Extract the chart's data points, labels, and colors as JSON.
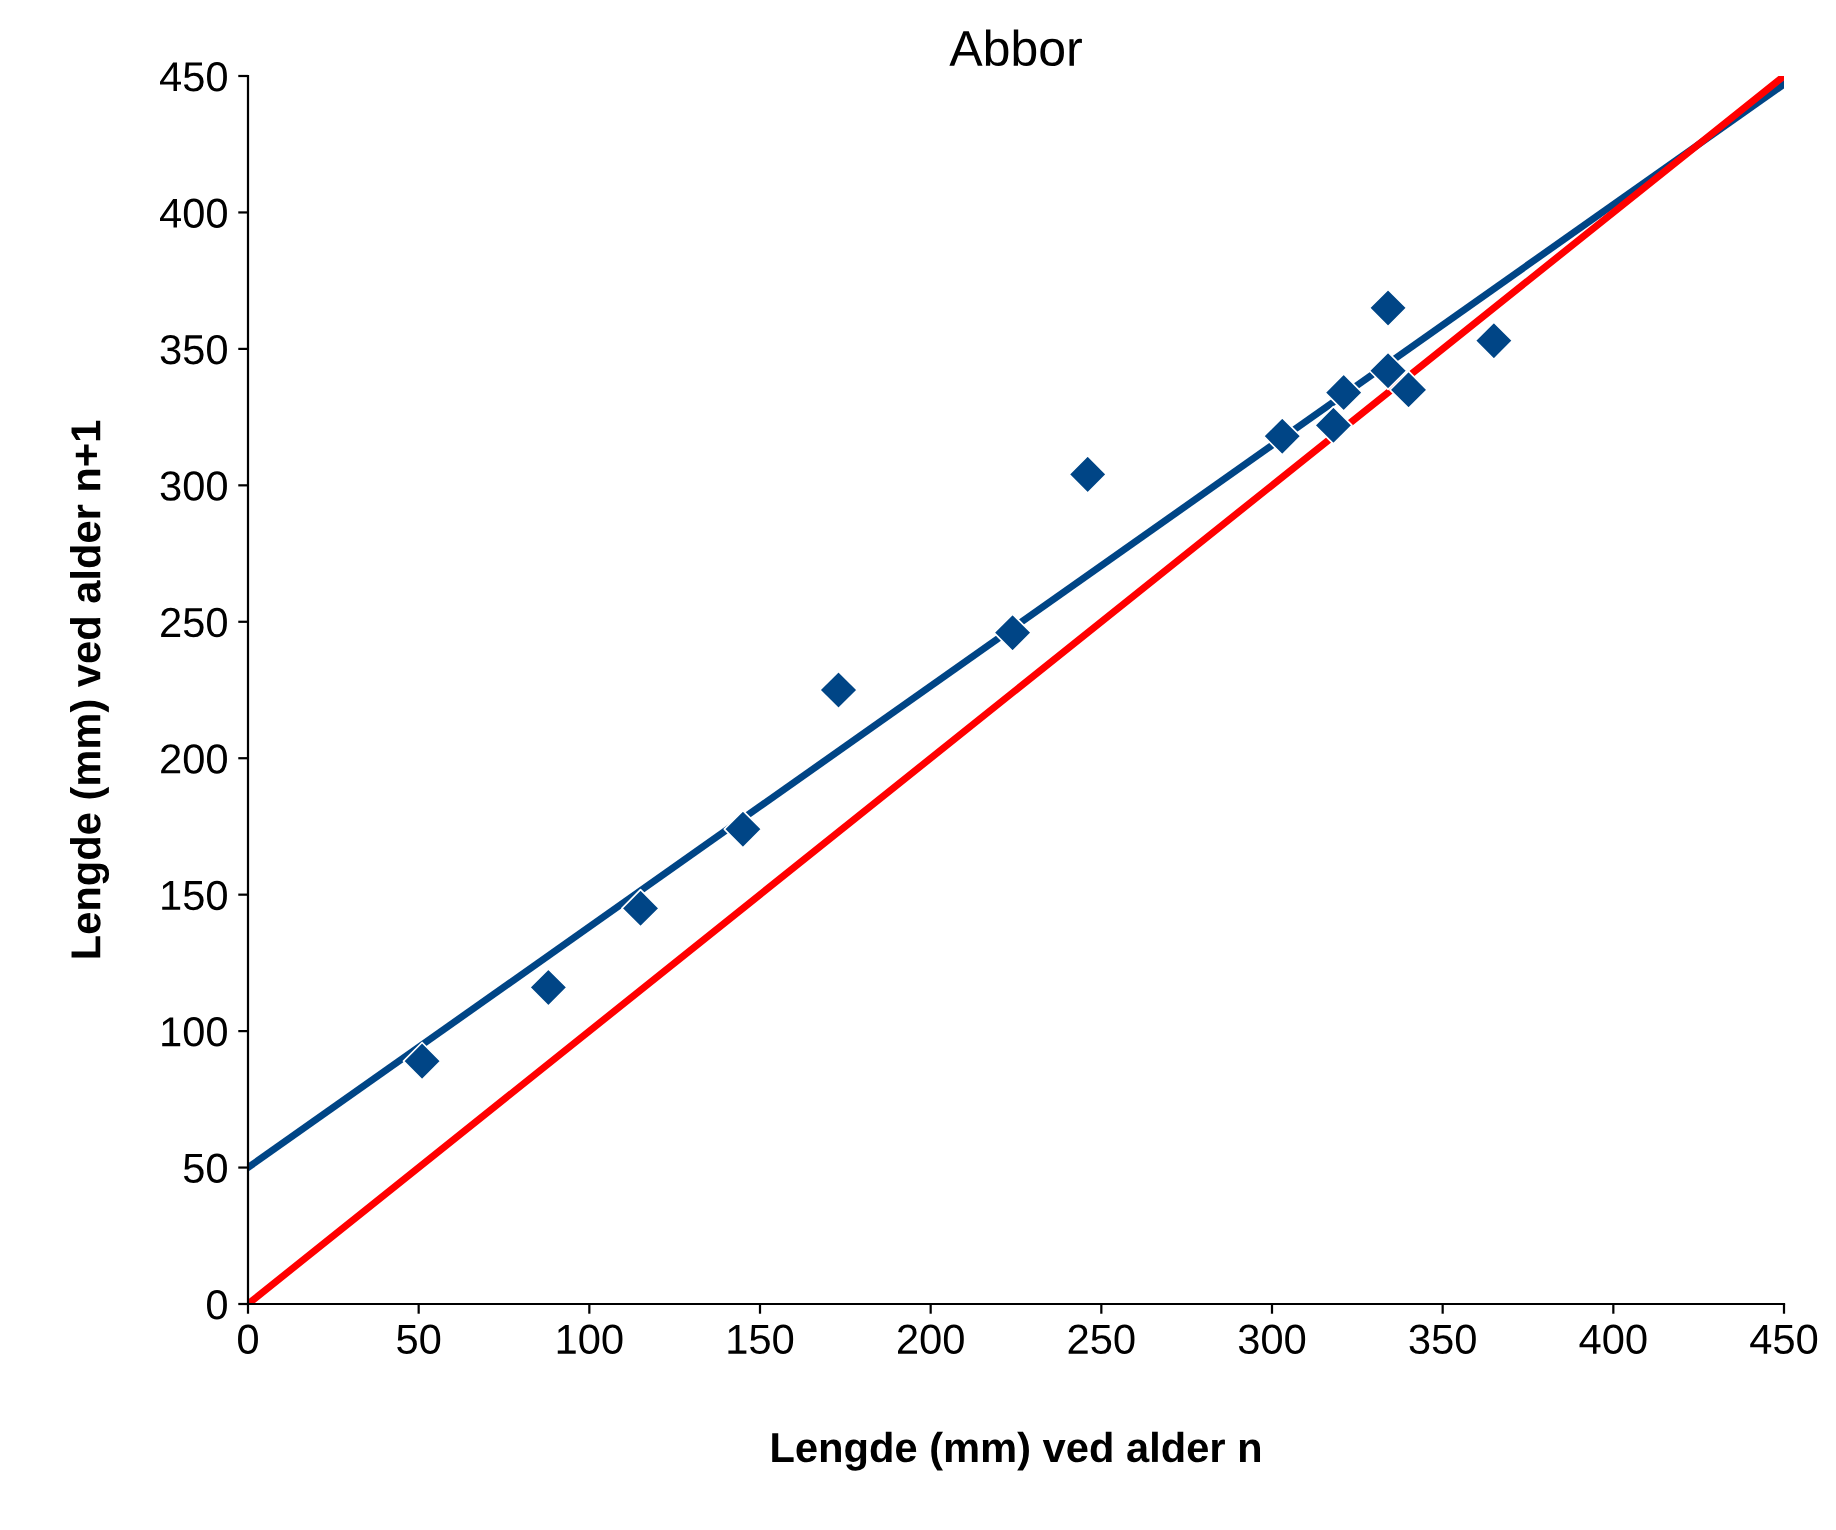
{
  "chart_data": {
    "type": "scatter",
    "title": "Abbor",
    "xlabel": "Lengde (mm) ved alder n",
    "ylabel": "Lengde (mm) ved alder n+1",
    "xlim": [
      0,
      450
    ],
    "ylim": [
      0,
      450
    ],
    "xticks": [
      0,
      50,
      100,
      150,
      200,
      250,
      300,
      350,
      400,
      450
    ],
    "yticks": [
      0,
      50,
      100,
      150,
      200,
      250,
      300,
      350,
      400,
      450
    ],
    "grid": false,
    "series": [
      {
        "color": "#004586",
        "marker": "diamond",
        "x": [
          51,
          88,
          115,
          145,
          173,
          224,
          246,
          303,
          318,
          321,
          334,
          334,
          340,
          365
        ],
        "values": [
          89,
          116,
          145,
          174,
          225,
          246,
          304,
          318,
          322,
          334,
          342,
          365,
          335,
          353
        ]
      },
      {
        "type": "line",
        "color": "#004586",
        "marker": "none",
        "line_style": "solid",
        "x": [
          0,
          450
        ],
        "values": [
          50,
          447
        ]
      },
      {
        "type": "line",
        "color": "#ff0000",
        "marker": "none",
        "line_style": "solid",
        "x": [
          0,
          450
        ],
        "values": [
          0,
          450
        ]
      }
    ]
  }
}
